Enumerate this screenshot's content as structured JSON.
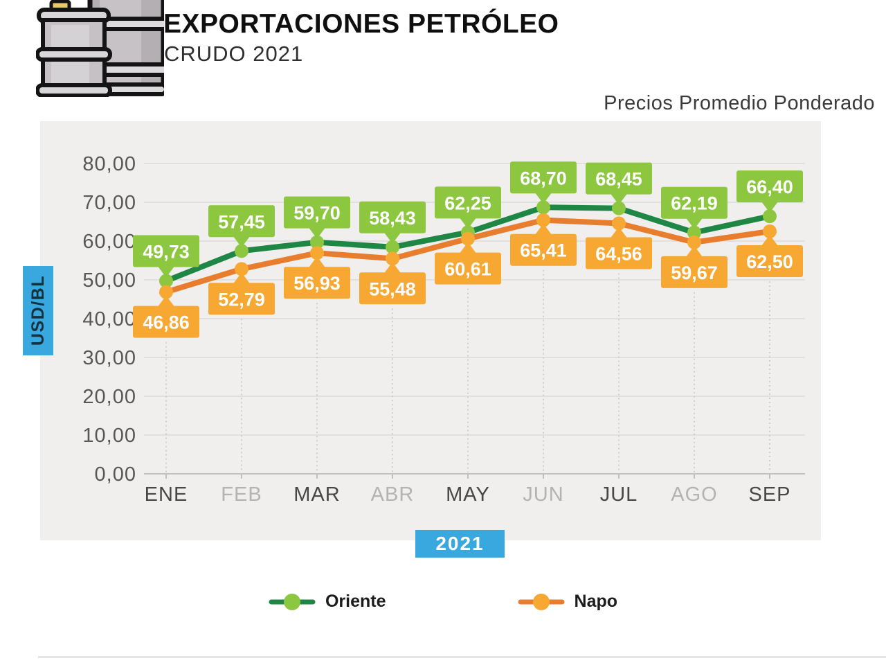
{
  "header": {
    "title": "EXPORTACIONES PETRÓLEO",
    "subtitle": "CRUDO 2021",
    "right_caption": "Precios Promedio Ponderado",
    "icon": "oil-barrels-icon"
  },
  "axis_badges": {
    "y_unit": "USD/BL",
    "x_year": "2021"
  },
  "chart_data": {
    "type": "line",
    "title": "Precios Promedio Ponderado",
    "xlabel": "2021",
    "ylabel": "USD/BL",
    "ylim": [
      0,
      80
    ],
    "y_tick_step": 10,
    "y_tick_labels": [
      "80,00",
      "70,00",
      "60,00",
      "50,00",
      "40,00",
      "30,00",
      "20,00",
      "10,00",
      "0,00"
    ],
    "categories": [
      "ENE",
      "FEB",
      "MAR",
      "ABR",
      "MAY",
      "JUN",
      "JUL",
      "AGO",
      "SEP"
    ],
    "grid": true,
    "legend_position": "bottom",
    "series": [
      {
        "name": "Oriente",
        "values": [
          49.73,
          57.45,
          59.7,
          58.43,
          62.25,
          68.7,
          68.45,
          62.19,
          66.4
        ],
        "labels": [
          "49,73",
          "57,45",
          "59,70",
          "58,43",
          "62,25",
          "68,70",
          "68,45",
          "62,19",
          "66,40"
        ],
        "line_color": "#1e8745",
        "marker_color": "#8dc63f",
        "label_position": "above"
      },
      {
        "name": "Napo",
        "values": [
          46.86,
          52.79,
          56.93,
          55.48,
          60.61,
          65.41,
          64.56,
          59.67,
          62.5
        ],
        "labels": [
          "46,86",
          "52,79",
          "56,93",
          "55,48",
          "60,61",
          "65,41",
          "64,56",
          "59,67",
          "62,50"
        ],
        "line_color": "#e87d2e",
        "marker_color": "#f6a832",
        "label_position": "below"
      }
    ]
  },
  "colors": {
    "accent_blue": "#38a8df",
    "panel_bg": "#f0efed",
    "grid_line": "#dddbd9",
    "axis_line": "#c2c0be",
    "dotted_guide": "#c6c4c2",
    "month_label_active": "#474747",
    "month_label_inactive": "#b5b3b1",
    "callout_text": "#ffffff"
  }
}
